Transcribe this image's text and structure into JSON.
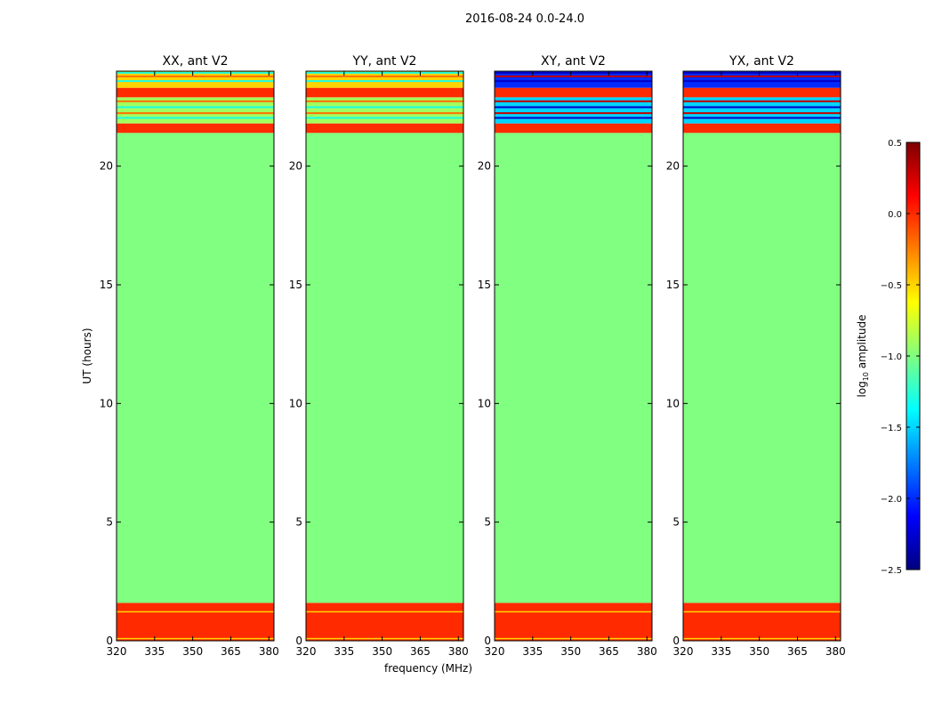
{
  "figure": {
    "suptitle": "2016-08-24 0.0-24.0",
    "xlabel": "frequency (MHz)",
    "ylabel": "UT (hours)"
  },
  "colorbar": {
    "label_prefix": "log",
    "label_sub": "10",
    "label_suffix": " amplitude",
    "ticks": [
      0.5,
      0.0,
      -0.5,
      -1.0,
      -1.5,
      -2.0,
      -2.5
    ],
    "tick_labels": [
      "0.5",
      "0.0",
      "−0.5",
      "−1.0",
      "−1.5",
      "−2.0",
      "−2.5"
    ],
    "vmin": -2.5,
    "vmax": 0.5,
    "colormap": "jet"
  },
  "chart_data": [
    {
      "type": "heatmap",
      "title": "XX, ant V2",
      "xlim": [
        320,
        382
      ],
      "ylim": [
        0,
        24
      ],
      "xticks": [
        320,
        335,
        350,
        365,
        380
      ],
      "yticks": [
        0,
        5,
        10,
        15,
        20
      ],
      "bands": [
        {
          "y0": 0.0,
          "y1": 1.6,
          "value": 0.0
        },
        {
          "y0": 1.6,
          "y1": 21.4,
          "value": -1.0
        },
        {
          "y0": 21.4,
          "y1": 21.8,
          "value": 0.0
        },
        {
          "y0": 21.8,
          "y1": 22.9,
          "value": -0.9
        },
        {
          "y0": 22.9,
          "y1": 23.3,
          "value": 0.0
        },
        {
          "y0": 23.3,
          "y1": 24.0,
          "value": -0.5
        }
      ]
    },
    {
      "type": "heatmap",
      "title": "YY, ant V2",
      "xlim": [
        320,
        382
      ],
      "ylim": [
        0,
        24
      ],
      "xticks": [
        320,
        335,
        350,
        365,
        380
      ],
      "yticks": [
        0,
        5,
        10,
        15,
        20
      ],
      "bands": [
        {
          "y0": 0.0,
          "y1": 1.6,
          "value": 0.0
        },
        {
          "y0": 1.6,
          "y1": 21.4,
          "value": -1.0
        },
        {
          "y0": 21.4,
          "y1": 21.8,
          "value": 0.0
        },
        {
          "y0": 21.8,
          "y1": 22.9,
          "value": -0.9
        },
        {
          "y0": 22.9,
          "y1": 23.3,
          "value": 0.0
        },
        {
          "y0": 23.3,
          "y1": 24.0,
          "value": -0.5
        }
      ]
    },
    {
      "type": "heatmap",
      "title": "XY, ant V2",
      "xlim": [
        320,
        382
      ],
      "ylim": [
        0,
        24
      ],
      "xticks": [
        320,
        335,
        350,
        365,
        380
      ],
      "yticks": [
        0,
        5,
        10,
        15,
        20
      ],
      "bands": [
        {
          "y0": 0.0,
          "y1": 1.6,
          "value": 0.0
        },
        {
          "y0": 1.6,
          "y1": 21.4,
          "value": -1.0
        },
        {
          "y0": 21.4,
          "y1": 21.8,
          "value": 0.0
        },
        {
          "y0": 21.8,
          "y1": 22.9,
          "value": -1.5
        },
        {
          "y0": 22.9,
          "y1": 23.3,
          "value": 0.0
        },
        {
          "y0": 23.3,
          "y1": 24.0,
          "value": -2.0
        }
      ]
    },
    {
      "type": "heatmap",
      "title": "YX, ant V2",
      "xlim": [
        320,
        382
      ],
      "ylim": [
        0,
        24
      ],
      "xticks": [
        320,
        335,
        350,
        365,
        380
      ],
      "yticks": [
        0,
        5,
        10,
        15,
        20
      ],
      "bands": [
        {
          "y0": 0.0,
          "y1": 1.6,
          "value": 0.0
        },
        {
          "y0": 1.6,
          "y1": 21.4,
          "value": -1.0
        },
        {
          "y0": 21.4,
          "y1": 21.8,
          "value": 0.0
        },
        {
          "y0": 21.8,
          "y1": 22.9,
          "value": -1.5
        },
        {
          "y0": 22.9,
          "y1": 23.3,
          "value": 0.0
        },
        {
          "y0": 23.3,
          "y1": 24.0,
          "value": -2.0
        }
      ]
    }
  ]
}
